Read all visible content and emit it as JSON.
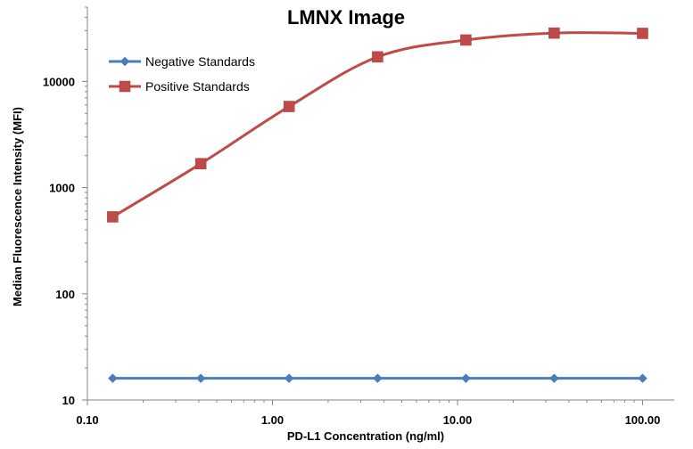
{
  "chart_data": {
    "type": "line",
    "title": "LMNX Image",
    "xlabel": "PD-L1 Concentration (ng/ml)",
    "ylabel": "Median Fluorescence Intensity (MFI)",
    "x_scale": "log",
    "y_scale": "log",
    "xlim": [
      0.1,
      100
    ],
    "ylim": [
      10,
      50000
    ],
    "x_ticks": [
      0.1,
      1,
      10,
      100
    ],
    "x_tick_labels": [
      "0.10",
      "1.00",
      "10.00",
      "100.00"
    ],
    "y_ticks": [
      10,
      100,
      1000,
      10000
    ],
    "y_tick_labels": [
      "10",
      "100",
      "1000",
      "10000"
    ],
    "grid": false,
    "legend_position": "top-left",
    "x": [
      0.137,
      0.41,
      1.23,
      3.7,
      11.1,
      33.3,
      100
    ],
    "series": [
      {
        "name": "Negative Standards",
        "color": "#4A7EBB",
        "marker": "diamond",
        "values": [
          16,
          16,
          16,
          16,
          16,
          16,
          16
        ]
      },
      {
        "name": "Positive Standards",
        "color": "#BE4B48",
        "marker": "square",
        "values": [
          530,
          1680,
          5800,
          17000,
          24500,
          28500,
          28300
        ]
      }
    ]
  }
}
